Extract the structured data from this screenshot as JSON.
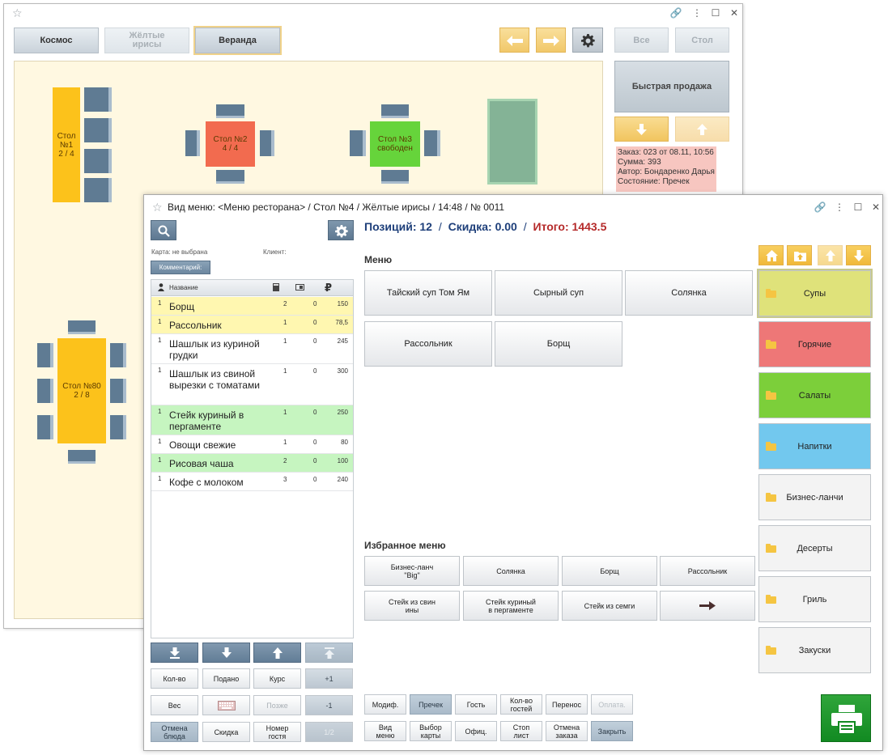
{
  "back_window": {
    "hall_tabs": [
      "Космос",
      "Жёлтые\nирисы",
      "Веранда"
    ],
    "filter_all": "Все",
    "filter_table": "Стол",
    "quick_sale": "Быстрая продажа",
    "order_info": [
      "Заказ: 023 от 08.11, 10:56",
      "Сумма: 393",
      "Автор: Бондаренко Дарья",
      "Состояние: Пречек"
    ],
    "tables": {
      "t1": "Стол\n№1\n2 / 4",
      "t2": "Стол №2\n4 / 4",
      "t3": "Стол №3\nсвободен",
      "t80": "Стол №80\n2 / 8"
    },
    "colors": {
      "occupied": "#fcc21b",
      "full": "#f26b4f",
      "free": "#66d43b",
      "reserved": "#84b396",
      "chair": "#5f7b93"
    }
  },
  "front_window": {
    "title": "Вид меню: <Меню ресторана>  /  Стол №4  /  Жёлтые ирисы  /  14:48  /  № 0011",
    "card_label": "Карта: не выбрана",
    "client_label": "Клиент:",
    "comment_button": "Комментарий:",
    "summary": {
      "positions_label": "Позиций: 12",
      "discount_label": "Скидка: 0.00",
      "total_label": "Итого: 1443.5",
      "sep": "/"
    },
    "order_table": {
      "header_name": "Название",
      "header_currency": "₽",
      "rows": [
        {
          "qty": "1",
          "name": "Борщ",
          "c1": "2",
          "c2": "0",
          "price": "150",
          "style": "yellow"
        },
        {
          "qty": "1",
          "name": "Рассольник",
          "c1": "1",
          "c2": "0",
          "price": "78,5",
          "style": "yellow"
        },
        {
          "qty": "1",
          "name": "Шашлык из куриной грудки",
          "c1": "1",
          "c2": "0",
          "price": "245",
          "style": "white"
        },
        {
          "qty": "1",
          "name": "Шашлык из свиной вырезки с томатами",
          "c1": "1",
          "c2": "0",
          "price": "300",
          "style": "white"
        },
        {
          "qty": "1",
          "name": "Стейк куриный в пергаменте",
          "c1": "1",
          "c2": "0",
          "price": "250",
          "style": "green"
        },
        {
          "qty": "1",
          "name": "Овощи свежие",
          "c1": "1",
          "c2": "0",
          "price": "80",
          "style": "white"
        },
        {
          "qty": "1",
          "name": "Рисовая чаша",
          "c1": "2",
          "c2": "0",
          "price": "100",
          "style": "green"
        },
        {
          "qty": "1",
          "name": "Кофе с молоком",
          "c1": "3",
          "c2": "0",
          "price": "240",
          "style": "white"
        }
      ]
    },
    "order_actions": {
      "qty": "Кол-во",
      "served": "Подано",
      "course": "Курс",
      "plus_one": "+1",
      "weight": "Вес",
      "later": "Позже",
      "minus_one": "-1",
      "cancel_dish": "Отмена\nблюда",
      "discount": "Скидка",
      "guest_number": "Номер\nгостя",
      "half": "1/2"
    },
    "menu_title": "Меню",
    "menu_items": [
      "Тайский суп Том Ям",
      "Сырный суп",
      "Солянка",
      "Рассольник",
      "Борщ"
    ],
    "favorites_title": "Избранное меню",
    "favorites": [
      "Бизнес-ланч\n\"Big\"",
      "Солянка",
      "Борщ",
      "Рассольник",
      "Стейк из свин\nины",
      "Стейк куриный\nв пергаменте",
      "Стейк из семги"
    ],
    "categories": [
      {
        "label": "Супы",
        "color": "#dfe27a"
      },
      {
        "label": "Горячие",
        "color": "#ee7777"
      },
      {
        "label": "Салаты",
        "color": "#7ccf3a"
      },
      {
        "label": "Напитки",
        "color": "#72c8ee"
      },
      {
        "label": "Бизнес-ланчи",
        "color": "#f3f3f3"
      },
      {
        "label": "Десерты",
        "color": "#f3f3f3"
      },
      {
        "label": "Гриль",
        "color": "#f3f3f3"
      },
      {
        "label": "Закуски",
        "color": "#f3f3f3"
      }
    ],
    "bottom_bar": {
      "modif": "Модиф.",
      "precheck": "Пречек",
      "guest": "Гость",
      "guest_count": "Кол-во\nгостей",
      "transfer": "Перенос",
      "payment": "Оплата.",
      "view_menu": "Вид\nменю",
      "select_card": "Выбор\nкарты",
      "waiter": "Офиц.",
      "stop_list": "Стоп\nлист",
      "cancel_order": "Отмена\nзаказа",
      "close": "Закрыть"
    }
  }
}
